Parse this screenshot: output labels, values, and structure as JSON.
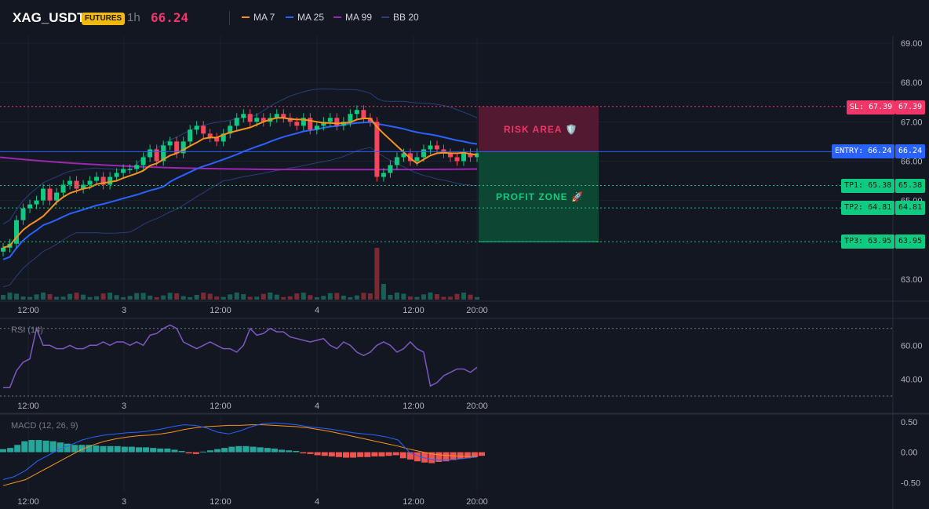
{
  "header": {
    "symbol": "XAG_USDT",
    "badge": "FUTURES",
    "timeframe": "1h",
    "price": "66.24",
    "legend": [
      {
        "label": "MA 7",
        "color": "#f7931a"
      },
      {
        "label": "MA 25",
        "color": "#2962ff"
      },
      {
        "label": "MA 99",
        "color": "#9c27b0"
      },
      {
        "label": "BB 20",
        "color": "#2a3f7a"
      }
    ]
  },
  "levels": {
    "sl": {
      "label": "SL: 67.39",
      "value": 67.39,
      "axis_label": "67.39"
    },
    "entry": {
      "label": "ENTRY: 66.24",
      "value": 66.24,
      "axis_label": "66.24"
    },
    "tp1": {
      "label": "TP1: 65.38",
      "value": 65.38,
      "axis_label": "65.38"
    },
    "tp2": {
      "label": "TP2: 64.81",
      "value": 64.81,
      "axis_label": "64.81"
    },
    "tp3": {
      "label": "TP3: 63.95",
      "value": 63.95,
      "axis_label": "63.95"
    }
  },
  "zones": {
    "risk": "RISK AREA 🛡️",
    "profit": "PROFIT ZONE 🚀"
  },
  "indicators": {
    "rsi_title": "RSI (14)",
    "macd_title": "MACD (12, 26, 9)"
  },
  "colors": {
    "up": "#26a69a",
    "up_bright": "#0ecb81",
    "down": "#f6465d",
    "rsi": "#7e57c2",
    "macd": "#2962ff",
    "signal": "#f7931a"
  },
  "chart_data": [
    {
      "type": "candlestick",
      "title": "XAG_USDT 1h",
      "x_ticks": [
        "12:00",
        "3",
        "12:00",
        "4",
        "12:00",
        "20:00"
      ],
      "y_ticks": [
        "69.00",
        "68.00",
        "67.00",
        "66.00",
        "65.00",
        "63.00"
      ],
      "ylim": [
        62.4,
        69.1
      ],
      "close": [
        63.8,
        63.9,
        64.5,
        64.8,
        64.9,
        65.0,
        65.3,
        65.0,
        65.2,
        65.4,
        65.5,
        65.3,
        65.4,
        65.5,
        65.6,
        65.4,
        65.6,
        65.7,
        65.8,
        65.8,
        65.9,
        66.1,
        66.3,
        66.0,
        66.4,
        66.5,
        66.2,
        66.5,
        66.8,
        66.9,
        66.7,
        66.6,
        66.5,
        66.7,
        66.9,
        67.1,
        67.2,
        67.0,
        67.1,
        67.0,
        67.1,
        67.2,
        67.1,
        67.0,
        66.9,
        67.1,
        66.8,
        66.9,
        67.0,
        67.1,
        66.9,
        67.0,
        67.2,
        67.3,
        67.1,
        67.0,
        65.6,
        65.7,
        65.9,
        66.1,
        66.2,
        66.0,
        66.1,
        66.3,
        66.4,
        66.3,
        66.2,
        66.1,
        66.0,
        66.2,
        66.1,
        66.2
      ],
      "ma7_endpoints": [
        63.8,
        66.2
      ],
      "ma25_endpoints": [
        63.7,
        66.6
      ],
      "ma99_endpoints": [
        66.1,
        65.8
      ],
      "volume_note": "spike at 12:00 on day 4"
    },
    {
      "type": "line",
      "title": "RSI (14)",
      "y_ticks": [
        "60.00",
        "40.00"
      ],
      "ylim": [
        30,
        75
      ],
      "values": [
        35,
        35,
        45,
        50,
        52,
        70,
        60,
        60,
        58,
        58,
        60,
        58,
        58,
        60,
        60,
        62,
        60,
        62,
        62,
        60,
        62,
        60,
        66,
        67,
        70,
        72,
        70,
        62,
        60,
        58,
        60,
        62,
        60,
        58,
        58,
        56,
        60,
        70,
        66,
        67,
        70,
        68,
        68,
        65,
        64,
        63,
        62,
        63,
        64,
        60,
        58,
        62,
        60,
        56,
        54,
        56,
        60,
        62,
        60,
        56,
        58,
        62,
        58,
        56,
        36,
        38,
        42,
        44,
        46,
        46,
        44,
        47
      ],
      "levels": [
        70,
        30
      ]
    },
    {
      "type": "bar+line",
      "title": "MACD (12, 26, 9)",
      "y_ticks": [
        "0.50",
        "0.00",
        "-0.50"
      ],
      "ylim": [
        -0.65,
        0.6
      ],
      "histogram": [
        0.05,
        0.07,
        0.12,
        0.18,
        0.2,
        0.2,
        0.19,
        0.18,
        0.16,
        0.14,
        0.12,
        0.12,
        0.12,
        0.11,
        0.1,
        0.1,
        0.1,
        0.09,
        0.09,
        0.08,
        0.08,
        0.07,
        0.06,
        0.06,
        0.04,
        0.02,
        -0.02,
        -0.03,
        0.01,
        0.03,
        0.05,
        0.07,
        0.09,
        0.1,
        0.1,
        0.09,
        0.08,
        0.07,
        0.06,
        0.04,
        0.03,
        0.02,
        -0.02,
        -0.03,
        -0.05,
        -0.06,
        -0.07,
        -0.08,
        -0.09,
        -0.09,
        -0.08,
        -0.08,
        -0.07,
        -0.07,
        -0.06,
        -0.05,
        -0.1,
        -0.12,
        -0.15,
        -0.17,
        -0.18,
        -0.16,
        -0.15,
        -0.13,
        -0.11,
        -0.1,
        -0.08,
        -0.06
      ],
      "macd_line": [
        -0.45,
        -0.4,
        -0.3,
        -0.15,
        -0.05,
        0.05,
        0.12,
        0.2,
        0.25,
        0.28,
        0.3,
        0.32,
        0.33,
        0.35,
        0.38,
        0.42,
        0.45,
        0.44,
        0.4,
        0.33,
        0.3,
        0.35,
        0.42,
        0.47,
        0.48,
        0.47,
        0.45,
        0.42,
        0.4,
        0.38,
        0.35,
        0.32,
        0.3,
        0.28,
        0.25,
        0.2,
        0.0,
        -0.08,
        -0.12,
        -0.13,
        -0.12,
        -0.1,
        -0.08
      ],
      "signal_line": [
        -0.55,
        -0.5,
        -0.45,
        -0.35,
        -0.25,
        -0.15,
        -0.05,
        0.05,
        0.12,
        0.18,
        0.22,
        0.25,
        0.27,
        0.28,
        0.3,
        0.33,
        0.37,
        0.4,
        0.42,
        0.43,
        0.44,
        0.44,
        0.45,
        0.45,
        0.44,
        0.43,
        0.42,
        0.4,
        0.37,
        0.34,
        0.3,
        0.26,
        0.22,
        0.18,
        0.14,
        0.1,
        0.05,
        0.01,
        -0.03,
        -0.05,
        -0.06,
        -0.07,
        -0.07
      ]
    }
  ]
}
